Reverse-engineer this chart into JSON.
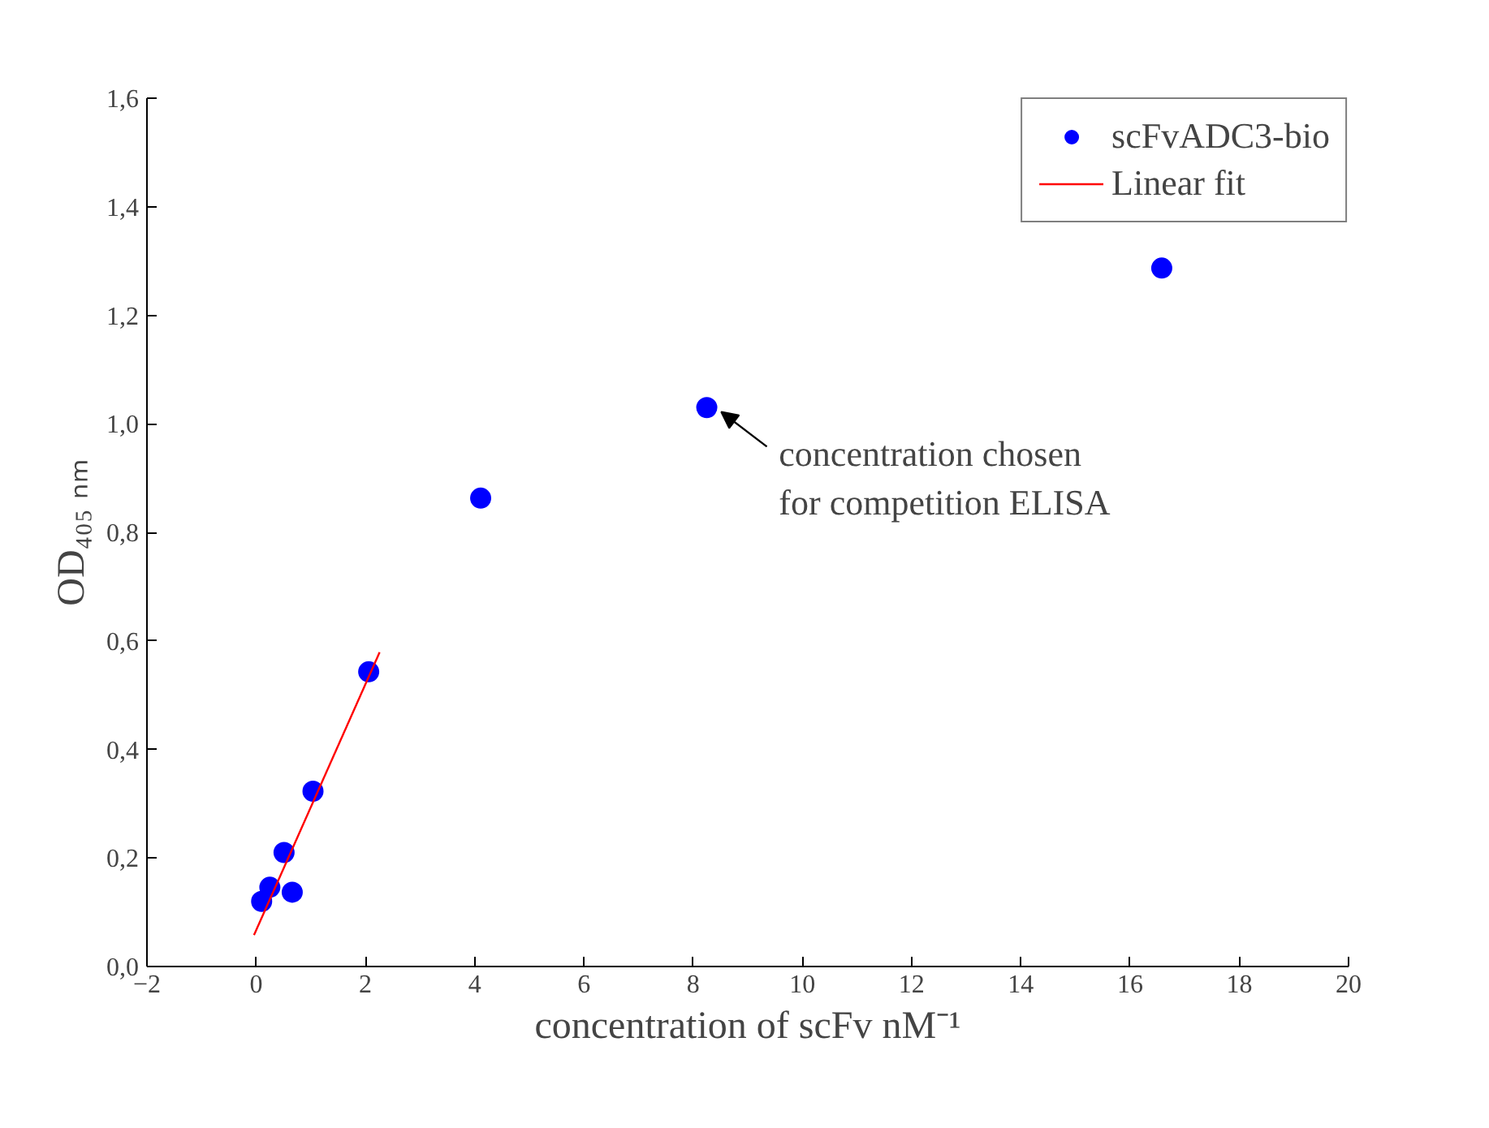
{
  "chart_data": {
    "type": "scatter",
    "xlabel": "concentration of scFv nM⁻¹",
    "ylabel": "OD₄₀₅ ₙₘ",
    "series": [
      {
        "name": "scFvADC3-bio",
        "color": "#0000ff",
        "marker": "circle",
        "x": [
          0.1,
          0.25,
          0.51,
          0.66,
          1.04,
          2.06,
          4.11,
          8.25,
          16.58
        ],
        "values": [
          0.12,
          0.146,
          0.21,
          0.137,
          0.323,
          0.543,
          0.863,
          1.03,
          1.287
        ]
      },
      {
        "name": "Linear fit",
        "type": "line",
        "color": "#ff0000",
        "line_style": "solid",
        "x": [
          -0.04,
          2.26
        ],
        "values": [
          0.058,
          0.579
        ]
      }
    ],
    "xlim": [
      -2,
      20
    ],
    "xticks": [
      -2,
      0,
      2,
      4,
      6,
      8,
      10,
      12,
      14,
      16,
      18,
      20
    ],
    "ylim": [
      0,
      1.6
    ],
    "yticks": [
      {
        "value": 0,
        "label": "0,0"
      },
      {
        "value": 0.2,
        "label": "0,2"
      },
      {
        "value": 0.4,
        "label": "0,4"
      },
      {
        "value": 0.6,
        "label": "0,6"
      },
      {
        "value": 0.8,
        "label": "0,8"
      },
      {
        "value": 1.0,
        "label": "1,0"
      },
      {
        "value": 1.2,
        "label": "1,2"
      },
      {
        "value": 1.4,
        "label": "1,4"
      },
      {
        "value": 1.6,
        "label": "1,6"
      }
    ],
    "annotations": [
      {
        "text": "concentration chosen\nfor competition ELISA",
        "x": 8.25,
        "y": 1.03
      }
    ],
    "legend": "top right",
    "grid": false
  }
}
